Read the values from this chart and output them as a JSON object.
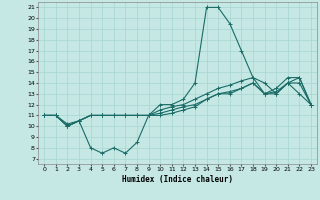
{
  "xlabel": "Humidex (Indice chaleur)",
  "bg_color": "#c5e8e5",
  "grid_color": "#a8d4d0",
  "line_color": "#1a6b66",
  "xlim": [
    -0.5,
    23.5
  ],
  "ylim": [
    6.5,
    21.5
  ],
  "xticks": [
    0,
    1,
    2,
    3,
    4,
    5,
    6,
    7,
    8,
    9,
    10,
    11,
    12,
    13,
    14,
    15,
    16,
    17,
    18,
    19,
    20,
    21,
    22,
    23
  ],
  "yticks": [
    7,
    8,
    9,
    10,
    11,
    12,
    13,
    14,
    15,
    16,
    17,
    18,
    19,
    20,
    21
  ],
  "line1_x": [
    0,
    1,
    2,
    3,
    4,
    5,
    6,
    7,
    8,
    9,
    10,
    11,
    12,
    13,
    14,
    15,
    16,
    17,
    18,
    19,
    20,
    21,
    22,
    23
  ],
  "line1_y": [
    11,
    11,
    10,
    10.5,
    8,
    7.5,
    8,
    7.5,
    8.5,
    11,
    12,
    12,
    12.5,
    14,
    21,
    21,
    19.5,
    17,
    14.5,
    14,
    13,
    14,
    13,
    12
  ],
  "line2_x": [
    0,
    1,
    2,
    3,
    4,
    5,
    6,
    7,
    8,
    9,
    10,
    11,
    12,
    13,
    14,
    15,
    16,
    17,
    18,
    19,
    20,
    21,
    22,
    23
  ],
  "line2_y": [
    11,
    11,
    10,
    10.5,
    11,
    11,
    11,
    11,
    11,
    11,
    11.5,
    11.8,
    12,
    12.5,
    13,
    13.5,
    13.8,
    14.2,
    14.5,
    13,
    13.2,
    14,
    14,
    12
  ],
  "line3_x": [
    0,
    1,
    2,
    3,
    4,
    5,
    6,
    7,
    8,
    9,
    10,
    11,
    12,
    13,
    14,
    15,
    16,
    17,
    18,
    19,
    20,
    21,
    22,
    23
  ],
  "line3_y": [
    11,
    11,
    10,
    10.5,
    11,
    11,
    11,
    11,
    11,
    11,
    11.2,
    11.5,
    11.8,
    12,
    12.5,
    13,
    13.2,
    13.5,
    14,
    13,
    13.5,
    14.5,
    14.5,
    12
  ],
  "line4_x": [
    0,
    1,
    2,
    3,
    4,
    5,
    6,
    7,
    8,
    9,
    10,
    11,
    12,
    13,
    14,
    15,
    16,
    17,
    18,
    19,
    20,
    21,
    22,
    23
  ],
  "line4_y": [
    11,
    11,
    10.2,
    10.5,
    11,
    11,
    11,
    11,
    11,
    11,
    11,
    11.2,
    11.5,
    11.8,
    12.5,
    13,
    13,
    13.5,
    14,
    13,
    13,
    14,
    14.5,
    12
  ]
}
